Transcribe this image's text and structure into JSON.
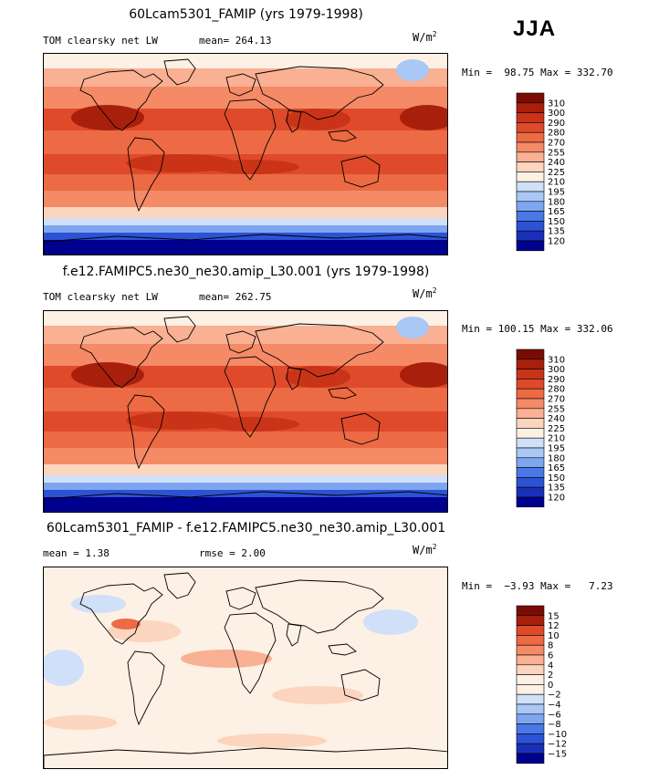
{
  "season": "JJA",
  "colors": {
    "abs_scale": [
      "#00008f",
      "#1a2fb8",
      "#2d52d4",
      "#4a78e6",
      "#7ea5f0",
      "#aac8f5",
      "#cfe0f8",
      "#fdf0e4",
      "#fcd5bf",
      "#f9b093",
      "#f48a66",
      "#ec6a44",
      "#df4a2b",
      "#c93418",
      "#a8200c",
      "#7a0d03"
    ],
    "diff_scale": [
      "#00008f",
      "#1a2fb8",
      "#2d52d4",
      "#4a78e6",
      "#7ea5f0",
      "#aac8f5",
      "#cfe0f8",
      "#fdf0e4",
      "#fdf0e4",
      "#fcd5bf",
      "#f9b093",
      "#f48a66",
      "#ec6a44",
      "#df4a2b",
      "#a8200c",
      "#7a0d03"
    ]
  },
  "panels": [
    {
      "title": "60Lcam5301_FAMIP (yrs 1979-1998)",
      "left_label": "TOM clearsky net LW",
      "stat_label": "mean= 264.13",
      "units": "W/m",
      "units_exp": "2",
      "minmax": "Min =  98.75 Max = 332.70",
      "colorbar_labels": [
        "310",
        "300",
        "290",
        "280",
        "270",
        "255",
        "240",
        "225",
        "210",
        "195",
        "180",
        "165",
        "150",
        "135",
        "120"
      ]
    },
    {
      "title": "f.e12.FAMIPC5.ne30_ne30.amip_L30.001 (yrs 1979-1998)",
      "left_label": "TOM clearsky net LW",
      "stat_label": "mean= 262.75",
      "units": "W/m",
      "units_exp": "2",
      "minmax": "Min = 100.15 Max = 332.06",
      "colorbar_labels": [
        "310",
        "300",
        "290",
        "280",
        "270",
        "255",
        "240",
        "225",
        "210",
        "195",
        "180",
        "165",
        "150",
        "135",
        "120"
      ]
    },
    {
      "title": "60Lcam5301_FAMIP - f.e12.FAMIPC5.ne30_ne30.amip_L30.001",
      "left_label": "mean =   1.38",
      "stat_label": "rmse =   2.00",
      "units": "W/m",
      "units_exp": "2",
      "minmax": "Min =  −3.93 Max =   7.23",
      "colorbar_labels": [
        "15",
        "12",
        "10",
        "8",
        "6",
        "4",
        "2",
        "0",
        "−2",
        "−4",
        "−6",
        "−8",
        "−10",
        "−12",
        "−15"
      ]
    }
  ]
}
